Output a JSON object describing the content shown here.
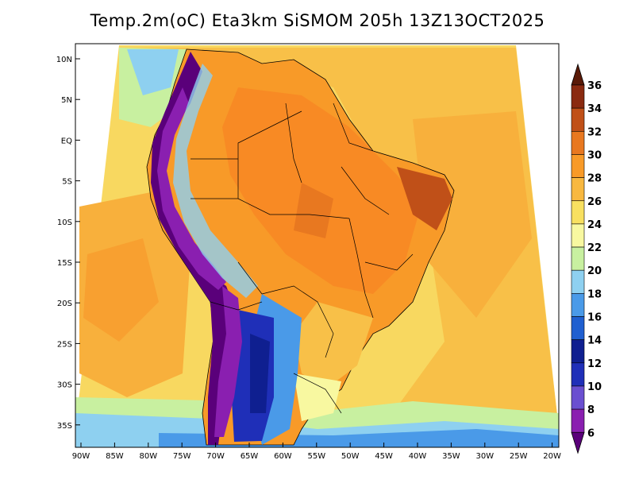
{
  "title": "Temp.2m(oC) Eta3km SiSMOM 205h 13Z13OCT2025",
  "map": {
    "lat_labels": [
      "10N",
      "5N",
      "EQ",
      "5S",
      "10S",
      "15S",
      "20S",
      "25S",
      "30S",
      "35S"
    ],
    "lon_labels": [
      "90W",
      "85W",
      "80W",
      "75W",
      "70W",
      "65W",
      "60W",
      "55W",
      "50W",
      "45W",
      "40W",
      "35W",
      "30W",
      "25W",
      "20W"
    ]
  },
  "colorbar": {
    "levels": [
      "6",
      "8",
      "10",
      "12",
      "14",
      "16",
      "18",
      "20",
      "22",
      "24",
      "26",
      "28",
      "30",
      "32",
      "34",
      "36"
    ],
    "colors": [
      "#5a007a",
      "#8a1fb0",
      "#6a4fd0",
      "#1f2fb8",
      "#0f1f90",
      "#1f5fd0",
      "#4a9ae8",
      "#8ed0f0",
      "#c8f0a0",
      "#f8f8a0",
      "#f8e060",
      "#f8b840",
      "#f89a28",
      "#e87820",
      "#c05018",
      "#8a2a10",
      "#5a1a08"
    ]
  }
}
